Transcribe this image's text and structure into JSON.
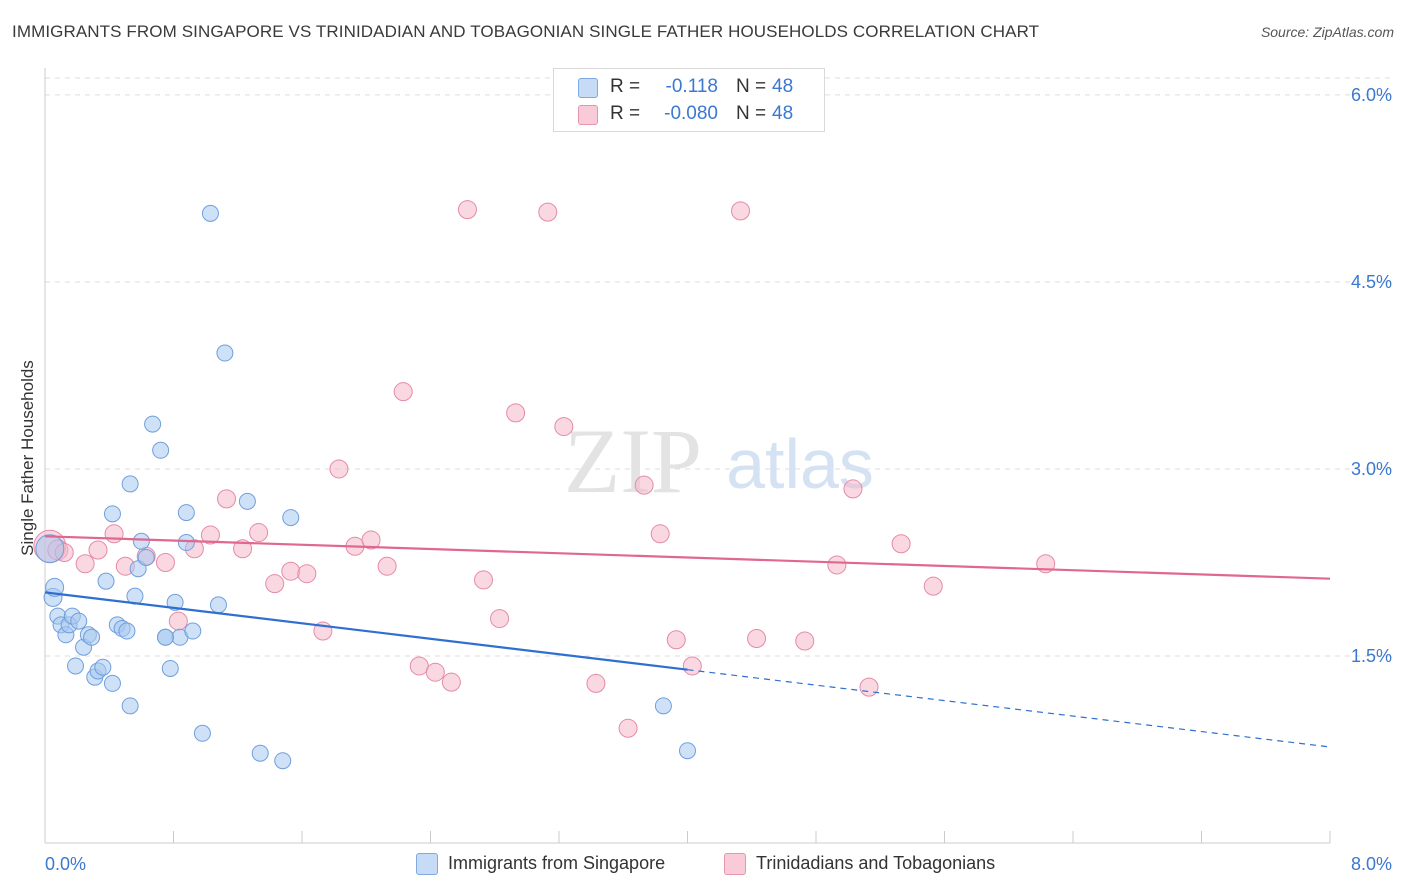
{
  "title": "IMMIGRANTS FROM SINGAPORE VS TRINIDADIAN AND TOBAGONIAN SINGLE FATHER HOUSEHOLDS CORRELATION CHART",
  "source": "Source: ZipAtlas.com",
  "watermark": {
    "zip": "ZIP",
    "atlas": "atlas"
  },
  "legend": {
    "r_label": "R =",
    "n_label": "N =",
    "series": [
      {
        "r": "-0.118",
        "n": "48"
      },
      {
        "r": "-0.080",
        "n": "48"
      }
    ]
  },
  "colors": {
    "blue_fill": "#a8c8f0",
    "blue_stroke": "#6f9fdd",
    "blue_line": "#2f6fd0",
    "pink_fill": "#f6b8cb",
    "pink_stroke": "#e58aa8",
    "pink_line": "#e0678f",
    "tick_label": "#3b78d0",
    "grid": "#dddddd"
  },
  "chart_data": {
    "type": "scatter",
    "title": "IMMIGRANTS FROM SINGAPORE VS TRINIDADIAN AND TOBAGONIAN SINGLE FATHER HOUSEHOLDS CORRELATION CHART",
    "xlabel": "",
    "ylabel": "Single Father Households",
    "xlim": [
      0,
      8
    ],
    "ylim": [
      0,
      6.2
    ],
    "x_tick_labels": [
      "0.0%",
      "8.0%"
    ],
    "y_ticks": [
      {
        "value": 1.5,
        "label": "1.5%"
      },
      {
        "value": 3.0,
        "label": "3.0%"
      },
      {
        "value": 4.5,
        "label": "4.5%"
      },
      {
        "value": 6.0,
        "label": "6.0%"
      }
    ],
    "series": [
      {
        "name": "Immigrants from Singapore",
        "color": "blue",
        "r": -0.118,
        "n": 48,
        "trend": {
          "x0": 0,
          "y0": 2.01,
          "x1": 4.0,
          "y1": 1.39,
          "dash_x1": 8.0,
          "dash_y1": 0.77
        },
        "points": [
          [
            0.03,
            2.36,
            14
          ],
          [
            0.05,
            1.97,
            9
          ],
          [
            0.06,
            2.05,
            9
          ],
          [
            0.08,
            1.82,
            8
          ],
          [
            0.1,
            1.75,
            8
          ],
          [
            0.13,
            1.67,
            8
          ],
          [
            0.15,
            1.75,
            8
          ],
          [
            0.17,
            1.82,
            8
          ],
          [
            0.19,
            1.42,
            8
          ],
          [
            0.21,
            1.78,
            8
          ],
          [
            0.24,
            1.57,
            8
          ],
          [
            0.27,
            1.67,
            8
          ],
          [
            0.29,
            1.65,
            8
          ],
          [
            0.31,
            1.33,
            8
          ],
          [
            0.33,
            1.38,
            8
          ],
          [
            0.36,
            1.41,
            8
          ],
          [
            0.38,
            2.1,
            8
          ],
          [
            0.42,
            1.28,
            8
          ],
          [
            0.45,
            1.75,
            8
          ],
          [
            0.48,
            1.72,
            8
          ],
          [
            0.51,
            1.7,
            8
          ],
          [
            0.53,
            1.1,
            8
          ],
          [
            0.56,
            1.98,
            8
          ],
          [
            0.58,
            2.2,
            8
          ],
          [
            0.6,
            2.42,
            8
          ],
          [
            0.63,
            2.29,
            8
          ],
          [
            0.67,
            3.36,
            8
          ],
          [
            0.72,
            3.15,
            8
          ],
          [
            0.75,
            1.65,
            8
          ],
          [
            0.78,
            1.4,
            8
          ],
          [
            0.81,
            1.93,
            8
          ],
          [
            0.84,
            1.65,
            8
          ],
          [
            0.88,
            2.65,
            8
          ],
          [
            0.92,
            1.7,
            8
          ],
          [
            0.98,
            0.88,
            8
          ],
          [
            1.03,
            5.05,
            8
          ],
          [
            1.08,
            1.91,
            8
          ],
          [
            1.12,
            3.93,
            8
          ],
          [
            1.26,
            2.74,
            8
          ],
          [
            1.34,
            0.72,
            8
          ],
          [
            1.48,
            0.66,
            8
          ],
          [
            1.53,
            2.61,
            8
          ],
          [
            0.53,
            2.88,
            8
          ],
          [
            0.42,
            2.64,
            8
          ],
          [
            0.75,
            1.65,
            8
          ],
          [
            0.88,
            2.41,
            8
          ],
          [
            3.85,
            1.1,
            8
          ],
          [
            4.0,
            0.74,
            8
          ]
        ]
      },
      {
        "name": "Trinidadians and Tobagonians",
        "color": "pink",
        "r": -0.08,
        "n": 48,
        "trend": {
          "x0": 0,
          "y0": 2.46,
          "x1": 8.0,
          "y1": 2.12
        },
        "points": [
          [
            0.03,
            2.38,
            16
          ],
          [
            0.08,
            2.35,
            10
          ],
          [
            0.12,
            2.33,
            9
          ],
          [
            0.25,
            2.24,
            9
          ],
          [
            0.33,
            2.35,
            9
          ],
          [
            0.43,
            2.48,
            9
          ],
          [
            0.5,
            2.22,
            9
          ],
          [
            0.63,
            2.3,
            9
          ],
          [
            0.75,
            2.25,
            9
          ],
          [
            0.83,
            1.78,
            9
          ],
          [
            0.93,
            2.36,
            9
          ],
          [
            1.03,
            2.47,
            9
          ],
          [
            1.13,
            2.76,
            9
          ],
          [
            1.23,
            2.36,
            9
          ],
          [
            1.33,
            2.49,
            9
          ],
          [
            1.43,
            2.08,
            9
          ],
          [
            1.53,
            2.18,
            9
          ],
          [
            1.63,
            2.16,
            9
          ],
          [
            1.73,
            1.7,
            9
          ],
          [
            1.83,
            3.0,
            9
          ],
          [
            1.93,
            2.38,
            9
          ],
          [
            2.03,
            2.43,
            9
          ],
          [
            2.13,
            2.22,
            9
          ],
          [
            2.23,
            3.62,
            9
          ],
          [
            2.33,
            1.42,
            9
          ],
          [
            2.43,
            1.37,
            9
          ],
          [
            2.53,
            1.29,
            9
          ],
          [
            2.63,
            5.08,
            9
          ],
          [
            2.73,
            2.11,
            9
          ],
          [
            2.83,
            1.8,
            9
          ],
          [
            2.93,
            3.45,
            9
          ],
          [
            3.13,
            5.06,
            9
          ],
          [
            3.23,
            3.34,
            9
          ],
          [
            3.43,
            1.28,
            9
          ],
          [
            3.63,
            0.92,
            9
          ],
          [
            3.73,
            2.87,
            9
          ],
          [
            3.83,
            2.48,
            9
          ],
          [
            3.93,
            1.63,
            9
          ],
          [
            4.03,
            1.42,
            9
          ],
          [
            4.33,
            5.07,
            9
          ],
          [
            4.43,
            1.64,
            9
          ],
          [
            4.73,
            1.62,
            9
          ],
          [
            4.93,
            2.23,
            9
          ],
          [
            5.03,
            2.84,
            9
          ],
          [
            5.13,
            1.25,
            9
          ],
          [
            5.33,
            2.4,
            9
          ],
          [
            5.53,
            2.06,
            9
          ],
          [
            6.23,
            2.24,
            9
          ]
        ]
      }
    ]
  }
}
